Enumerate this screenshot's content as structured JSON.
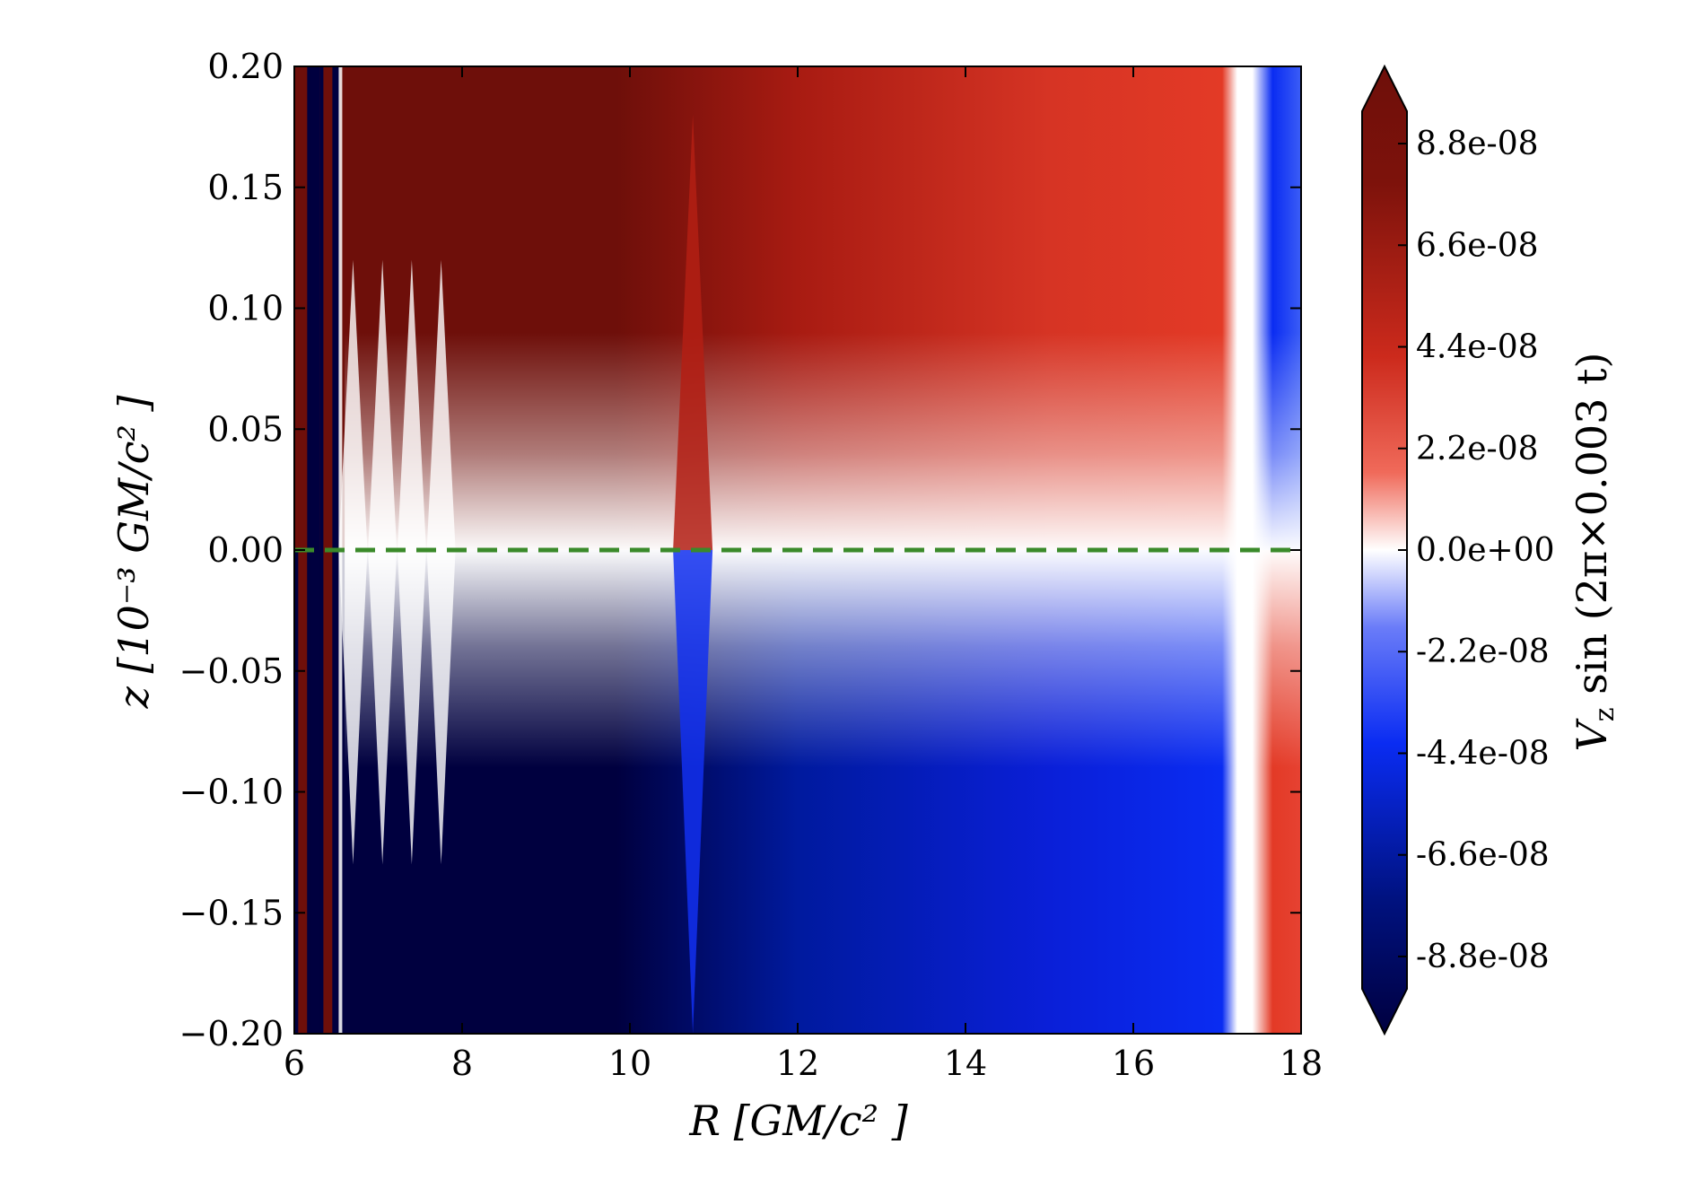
{
  "chart_data": {
    "type": "heatmap",
    "title": "",
    "xlabel": "R [GM/c² ]",
    "ylabel": "z [10⁻³ GM/c² ]",
    "xlim": [
      6,
      18
    ],
    "ylim": [
      -0.2,
      0.2
    ],
    "x_ticks": [
      "6",
      "8",
      "10",
      "12",
      "14",
      "16",
      "18"
    ],
    "y_ticks": [
      "0.20",
      "0.15",
      "0.10",
      "0.05",
      "0.00",
      "−0.05",
      "−0.10",
      "−0.15",
      "−0.20"
    ],
    "colorbar": {
      "label": "V_z sin (2π×0.003 t)",
      "label_main": "V",
      "label_sub": "z",
      "label_rest": " sin (2π×0.003 t)",
      "range": [
        -9.5e-08,
        9.5e-08
      ],
      "ticks": [
        "8.8e-08",
        "6.6e-08",
        "4.4e-08",
        "2.2e-08",
        "0.0e+00",
        "-2.2e-08",
        "-4.4e-08",
        "-6.6e-08",
        "-8.8e-08"
      ],
      "tick_values": [
        8.8e-08,
        6.6e-08,
        4.4e-08,
        2.2e-08,
        0,
        -2.2e-08,
        -4.4e-08,
        -6.6e-08,
        -8.8e-08
      ],
      "extend": "both",
      "colormap": "seismic"
    },
    "reference_line": {
      "z": 0.0,
      "style": "dashed",
      "color": "#3a8a2a"
    },
    "field_description": "Antisymmetric about z=0: positive (red) above the midplane, negative (blue) below, strongest at small R; sign reverses beyond R≈17.3",
    "features": [
      {
        "R": 6.1,
        "type": "stripe"
      },
      {
        "R": 6.25,
        "type": "stripe"
      },
      {
        "R": 6.4,
        "type": "stripe"
      },
      {
        "R": 6.55,
        "type": "thin-vertical"
      },
      {
        "R": 6.7,
        "type": "spike"
      },
      {
        "R": 7.05,
        "type": "spike"
      },
      {
        "R": 7.4,
        "type": "spike"
      },
      {
        "R": 7.75,
        "type": "spike"
      },
      {
        "R": 10.75,
        "type": "spike"
      },
      {
        "R": 17.3,
        "type": "node"
      }
    ]
  },
  "colors": {
    "dark_red": "#6e0f0a",
    "red": "#e33a26",
    "white": "#ffffff",
    "blue": "#0a2cf2",
    "dark_blue": "#00003f",
    "green_dash": "#3a8a2a"
  }
}
